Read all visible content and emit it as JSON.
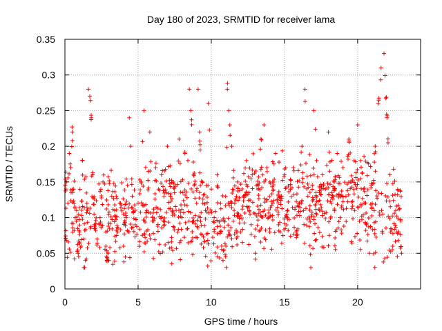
{
  "chart_data": {
    "type": "scatter",
    "title": "Day 180 of 2023, SRMTID for receiver lama",
    "xlabel": "GPS time / hours",
    "ylabel": "SRMTID / TECUs",
    "xlim": [
      0,
      24.3
    ],
    "ylim": [
      0,
      0.35
    ],
    "xticks": [
      0,
      5,
      10,
      15,
      20
    ],
    "xtick_labels": [
      "0",
      "5",
      "10",
      "15",
      "20"
    ],
    "yticks": [
      0,
      0.05,
      0.1,
      0.15,
      0.2,
      0.25,
      0.3,
      0.35
    ],
    "ytick_labels": [
      "0",
      "0.05",
      "0.1",
      "0.15",
      "0.2",
      "0.25",
      "0.3",
      "0.35"
    ],
    "grid": true,
    "marker": "plus",
    "colors": {
      "points": "#ff0000",
      "grid": "#a0a0a0",
      "axes": "#000000"
    },
    "x_range_of_points": [
      0,
      23
    ],
    "points": [
      [
        0.1,
        0.15
      ],
      [
        0.2,
        0.12
      ],
      [
        0.3,
        0.19
      ],
      [
        0.4,
        0.17
      ],
      [
        0.5,
        0.22
      ],
      [
        0.6,
        0.14
      ],
      [
        0.7,
        0.1
      ],
      [
        0.8,
        0.11
      ],
      [
        0.9,
        0.05
      ],
      [
        1.0,
        0.08
      ],
      [
        1.1,
        0.06
      ],
      [
        1.2,
        0.18
      ],
      [
        1.3,
        0.03
      ],
      [
        1.4,
        0.04
      ],
      [
        1.5,
        0.12
      ],
      [
        1.6,
        0.28
      ],
      [
        1.7,
        0.27
      ],
      [
        1.8,
        0.24
      ],
      [
        1.9,
        0.16
      ],
      [
        2.0,
        0.09
      ],
      [
        2.2,
        0.07
      ],
      [
        2.4,
        0.1
      ],
      [
        2.6,
        0.15
      ],
      [
        2.8,
        0.06
      ],
      [
        3.0,
        0.04
      ],
      [
        3.2,
        0.13
      ],
      [
        3.4,
        0.11
      ],
      [
        3.6,
        0.08
      ],
      [
        3.8,
        0.12
      ],
      [
        4.0,
        0.06
      ],
      [
        4.2,
        0.1
      ],
      [
        4.4,
        0.24
      ],
      [
        4.5,
        0.2
      ],
      [
        4.6,
        0.13
      ],
      [
        4.8,
        0.09
      ],
      [
        5.0,
        0.12
      ],
      [
        5.2,
        0.15
      ],
      [
        5.4,
        0.25
      ],
      [
        5.6,
        0.11
      ],
      [
        5.8,
        0.22
      ],
      [
        6.0,
        0.1
      ],
      [
        6.2,
        0.17
      ],
      [
        6.4,
        0.14
      ],
      [
        6.6,
        0.16
      ],
      [
        6.8,
        0.09
      ],
      [
        7.0,
        0.2
      ],
      [
        7.2,
        0.13
      ],
      [
        7.4,
        0.15
      ],
      [
        7.6,
        0.11
      ],
      [
        7.8,
        0.21
      ],
      [
        8.0,
        0.1
      ],
      [
        8.2,
        0.19
      ],
      [
        8.4,
        0.18
      ],
      [
        8.5,
        0.28
      ],
      [
        8.6,
        0.25
      ],
      [
        8.8,
        0.16
      ],
      [
        9.0,
        0.12
      ],
      [
        9.1,
        0.28
      ],
      [
        9.2,
        0.22
      ],
      [
        9.4,
        0.15
      ],
      [
        9.6,
        0.11
      ],
      [
        9.8,
        0.26
      ],
      [
        10.0,
        0.14
      ],
      [
        10.2,
        0.1
      ],
      [
        10.4,
        0.16
      ],
      [
        10.6,
        0.08
      ],
      [
        10.8,
        0.04
      ],
      [
        11.0,
        0.06
      ],
      [
        11.1,
        0.28
      ],
      [
        11.2,
        0.25
      ],
      [
        11.4,
        0.2
      ],
      [
        11.6,
        0.12
      ],
      [
        11.8,
        0.15
      ],
      [
        12.0,
        0.08
      ],
      [
        12.2,
        0.13
      ],
      [
        12.4,
        0.18
      ],
      [
        12.6,
        0.11
      ],
      [
        12.8,
        0.16
      ],
      [
        13.0,
        0.05
      ],
      [
        13.2,
        0.14
      ],
      [
        13.4,
        0.21
      ],
      [
        13.6,
        0.23
      ],
      [
        13.8,
        0.17
      ],
      [
        14.0,
        0.15
      ],
      [
        14.2,
        0.12
      ],
      [
        14.4,
        0.19
      ],
      [
        14.6,
        0.09
      ],
      [
        14.8,
        0.13
      ],
      [
        15.0,
        0.16
      ],
      [
        15.2,
        0.1
      ],
      [
        15.4,
        0.14
      ],
      [
        15.6,
        0.17
      ],
      [
        15.8,
        0.08
      ],
      [
        16.0,
        0.12
      ],
      [
        16.2,
        0.2
      ],
      [
        16.4,
        0.28
      ],
      [
        16.6,
        0.13
      ],
      [
        16.8,
        0.03
      ],
      [
        17.0,
        0.25
      ],
      [
        17.2,
        0.18
      ],
      [
        17.4,
        0.11
      ],
      [
        17.6,
        0.16
      ],
      [
        17.8,
        0.14
      ],
      [
        18.0,
        0.22
      ],
      [
        18.2,
        0.12
      ],
      [
        18.4,
        0.15
      ],
      [
        18.6,
        0.19
      ],
      [
        18.8,
        0.1
      ],
      [
        19.0,
        0.17
      ],
      [
        19.2,
        0.13
      ],
      [
        19.4,
        0.21
      ],
      [
        19.6,
        0.15
      ],
      [
        19.8,
        0.11
      ],
      [
        20.0,
        0.23
      ],
      [
        20.2,
        0.18
      ],
      [
        20.4,
        0.14
      ],
      [
        20.6,
        0.09
      ],
      [
        20.8,
        0.05
      ],
      [
        21.0,
        0.12
      ],
      [
        21.2,
        0.2
      ],
      [
        21.4,
        0.26
      ],
      [
        21.6,
        0.31
      ],
      [
        21.8,
        0.33
      ],
      [
        22.0,
        0.24
      ],
      [
        22.2,
        0.16
      ],
      [
        22.4,
        0.06
      ],
      [
        22.6,
        0.11
      ],
      [
        22.8,
        0.08
      ],
      [
        23.0,
        0.05
      ]
    ]
  }
}
